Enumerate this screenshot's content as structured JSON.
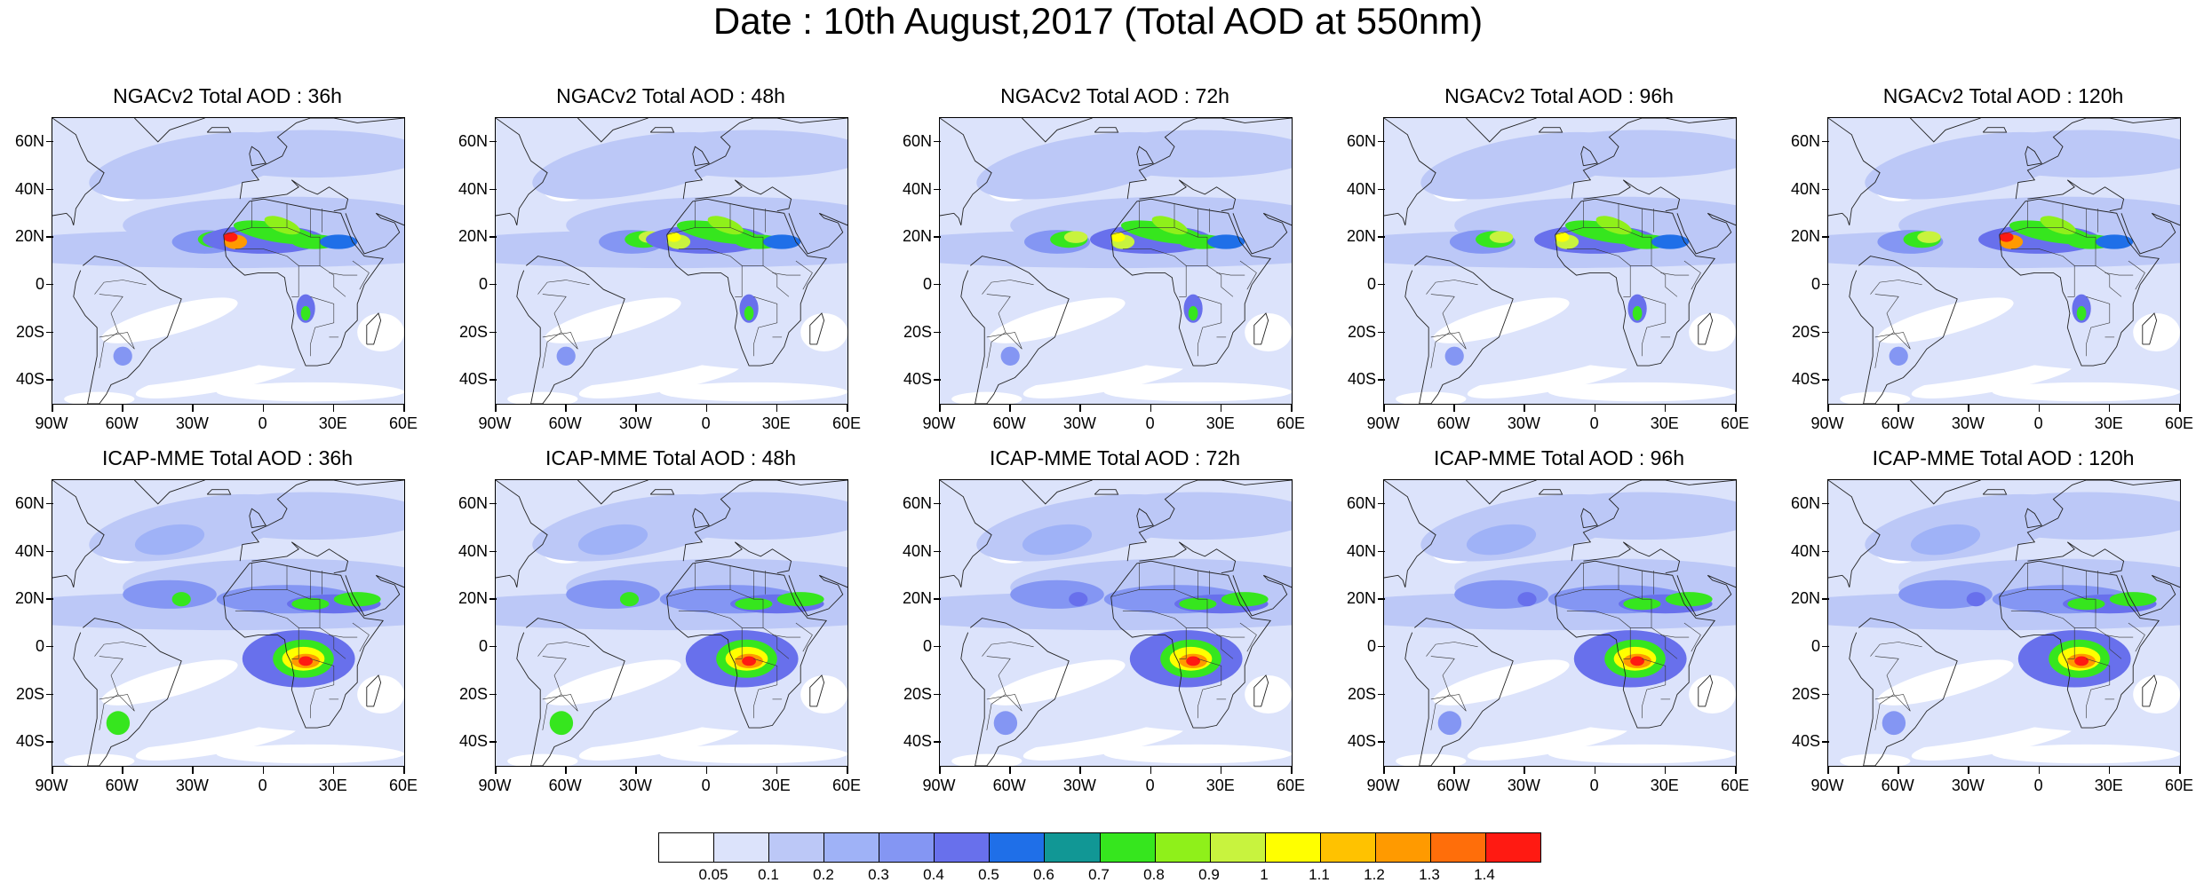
{
  "title": "Date : 10th August,2017 (Total AOD at 550nm)",
  "lat_ticks": [
    "60N",
    "40N",
    "20N",
    "0",
    "20S",
    "40S"
  ],
  "lat_values": [
    60,
    40,
    20,
    0,
    -20,
    -40
  ],
  "lon_ticks": [
    "90W",
    "60W",
    "30W",
    "0",
    "30E",
    "60E"
  ],
  "lon_values": [
    -90,
    -60,
    -30,
    0,
    30,
    60
  ],
  "lat_range": [
    -50,
    70
  ],
  "lon_range": [
    -90,
    60
  ],
  "panels": [
    {
      "title": "NGACv2 Total AOD : 36h",
      "model": "NGACv2",
      "lead": "36h"
    },
    {
      "title": "NGACv2 Total AOD : 48h",
      "model": "NGACv2",
      "lead": "48h"
    },
    {
      "title": "NGACv2 Total AOD : 72h",
      "model": "NGACv2",
      "lead": "72h"
    },
    {
      "title": "NGACv2 Total AOD : 96h",
      "model": "NGACv2",
      "lead": "96h"
    },
    {
      "title": "NGACv2 Total AOD : 120h",
      "model": "NGACv2",
      "lead": "120h"
    },
    {
      "title": "ICAP-MME Total AOD : 36h",
      "model": "ICAP-MME",
      "lead": "36h"
    },
    {
      "title": "ICAP-MME Total AOD : 48h",
      "model": "ICAP-MME",
      "lead": "48h"
    },
    {
      "title": "ICAP-MME Total AOD : 72h",
      "model": "ICAP-MME",
      "lead": "72h"
    },
    {
      "title": "ICAP-MME Total AOD : 96h",
      "model": "ICAP-MME",
      "lead": "96h"
    },
    {
      "title": "ICAP-MME Total AOD : 120h",
      "model": "ICAP-MME",
      "lead": "120h"
    }
  ],
  "colorbar": {
    "levels": [
      "0.05",
      "0.1",
      "0.2",
      "0.3",
      "0.4",
      "0.5",
      "0.6",
      "0.7",
      "0.8",
      "0.9",
      "1",
      "1.1",
      "1.2",
      "1.3",
      "1.4"
    ],
    "colors": [
      "#ffffff",
      "#dce3fb",
      "#bcc8f7",
      "#9fb2f7",
      "#8496f3",
      "#6870ec",
      "#1f6fe8",
      "#119795",
      "#36e61e",
      "#8ff01a",
      "#c8f33e",
      "#ffff00",
      "#ffc200",
      "#ff9a00",
      "#ff6e0a",
      "#ff1a12"
    ]
  }
}
